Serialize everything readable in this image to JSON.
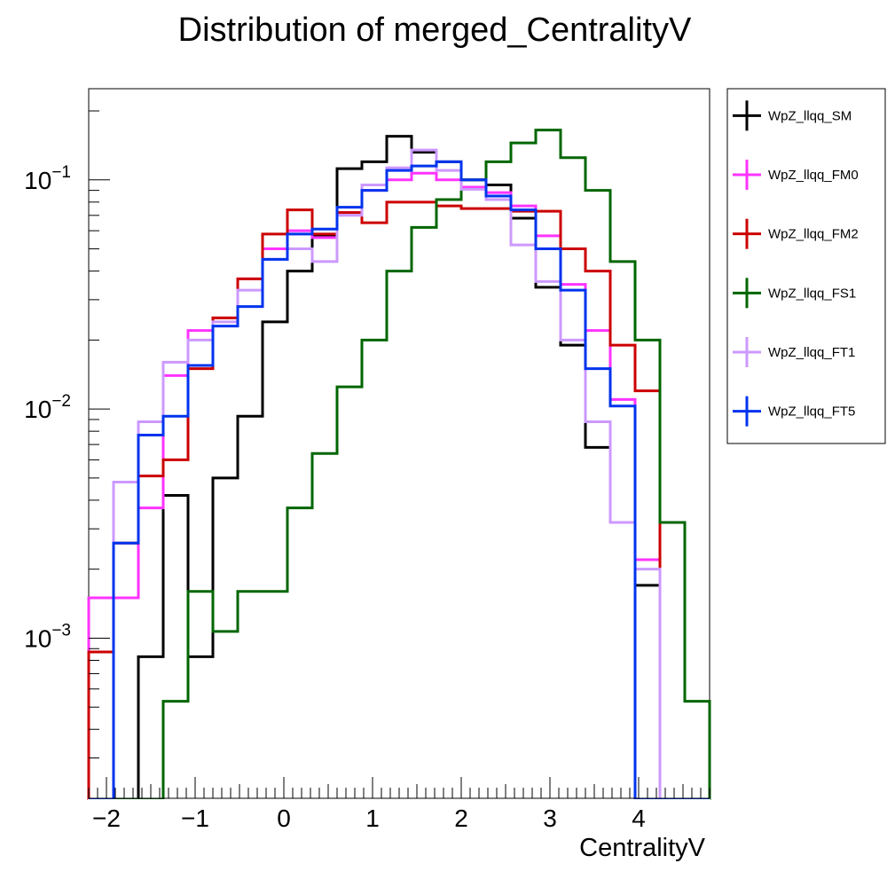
{
  "chart_data": {
    "type": "histogram",
    "title": "Distribution of merged_CentralityV",
    "xlabel": "CentralityV",
    "ylabel": "",
    "xlim": [
      -2.2,
      4.8
    ],
    "ylim": [
      0.0002,
      0.25
    ],
    "y_scale": "log",
    "grid": false,
    "legend_position": "right-outside",
    "x_ticks": [
      -2,
      -1,
      0,
      1,
      2,
      3,
      4
    ],
    "x_tick_labels": [
      "−2",
      "−1",
      "0",
      "1",
      "2",
      "3",
      "4"
    ],
    "y_ticks": [
      0.001,
      0.01,
      0.1
    ],
    "y_tick_labels": [
      {
        "base": "10",
        "exp": "−3"
      },
      {
        "base": "10",
        "exp": "−2"
      },
      {
        "base": "10",
        "exp": "−1"
      }
    ],
    "bin_edges": [
      -2.2,
      -1.92,
      -1.64,
      -1.36,
      -1.08,
      -0.8,
      -0.52,
      -0.24,
      0.04,
      0.32,
      0.6,
      0.88,
      1.16,
      1.44,
      1.72,
      2.0,
      2.28,
      2.56,
      2.84,
      3.12,
      3.4,
      3.68,
      3.96,
      4.24,
      4.52,
      4.8
    ],
    "series": [
      {
        "name": "WpZ_llqq_SM",
        "color": "#000000",
        "values": [
          0,
          0,
          0.00083,
          0.0042,
          0.00083,
          0.005,
          0.0093,
          0.024,
          0.04,
          0.057,
          0.112,
          0.12,
          0.155,
          0.132,
          0.12,
          0.1,
          0.095,
          0.068,
          0.034,
          0.019,
          0.0068,
          0.0032,
          0.0017,
          0,
          0
        ]
      },
      {
        "name": "WpZ_llqq_FM0",
        "color": "#ff33ff",
        "values": [
          0.0015,
          0.0015,
          0.0037,
          0.014,
          0.022,
          0.025,
          0.037,
          0.05,
          0.06,
          0.056,
          0.072,
          0.09,
          0.1,
          0.107,
          0.1,
          0.093,
          0.088,
          0.077,
          0.057,
          0.035,
          0.022,
          0.011,
          0.0022,
          0,
          0
        ]
      },
      {
        "name": "WpZ_llqq_FM2",
        "color": "#cc0000",
        "values": [
          0.00087,
          0.0026,
          0.0051,
          0.006,
          0.015,
          0.025,
          0.037,
          0.058,
          0.074,
          0.058,
          0.072,
          0.065,
          0.08,
          0.08,
          0.077,
          0.075,
          0.075,
          0.073,
          0.073,
          0.05,
          0.04,
          0.019,
          0.012,
          0,
          0
        ]
      },
      {
        "name": "WpZ_llqq_FS1",
        "color": "#006600",
        "values": [
          0,
          0,
          0,
          0.00053,
          0.0016,
          0.00107,
          0.0016,
          0.0016,
          0.0037,
          0.0064,
          0.0125,
          0.02,
          0.04,
          0.062,
          0.082,
          0.1,
          0.12,
          0.145,
          0.165,
          0.125,
          0.09,
          0.044,
          0.02,
          0.0032,
          0.00053
        ]
      },
      {
        "name": "WpZ_llqq_FT1",
        "color": "#cc99ff",
        "values": [
          0,
          0.0048,
          0.0088,
          0.016,
          0.02,
          0.024,
          0.033,
          0.045,
          0.05,
          0.044,
          0.07,
          0.095,
          0.113,
          0.135,
          0.11,
          0.091,
          0.082,
          0.052,
          0.036,
          0.02,
          0.0088,
          0.0032,
          0.002,
          0,
          0
        ]
      },
      {
        "name": "WpZ_llqq_FT5",
        "color": "#0033ee",
        "values": [
          0,
          0.0026,
          0.0077,
          0.0093,
          0.0155,
          0.023,
          0.028,
          0.045,
          0.058,
          0.061,
          0.076,
          0.09,
          0.11,
          0.115,
          0.12,
          0.1,
          0.085,
          0.074,
          0.05,
          0.033,
          0.015,
          0.0103,
          0,
          0,
          0
        ]
      }
    ]
  }
}
